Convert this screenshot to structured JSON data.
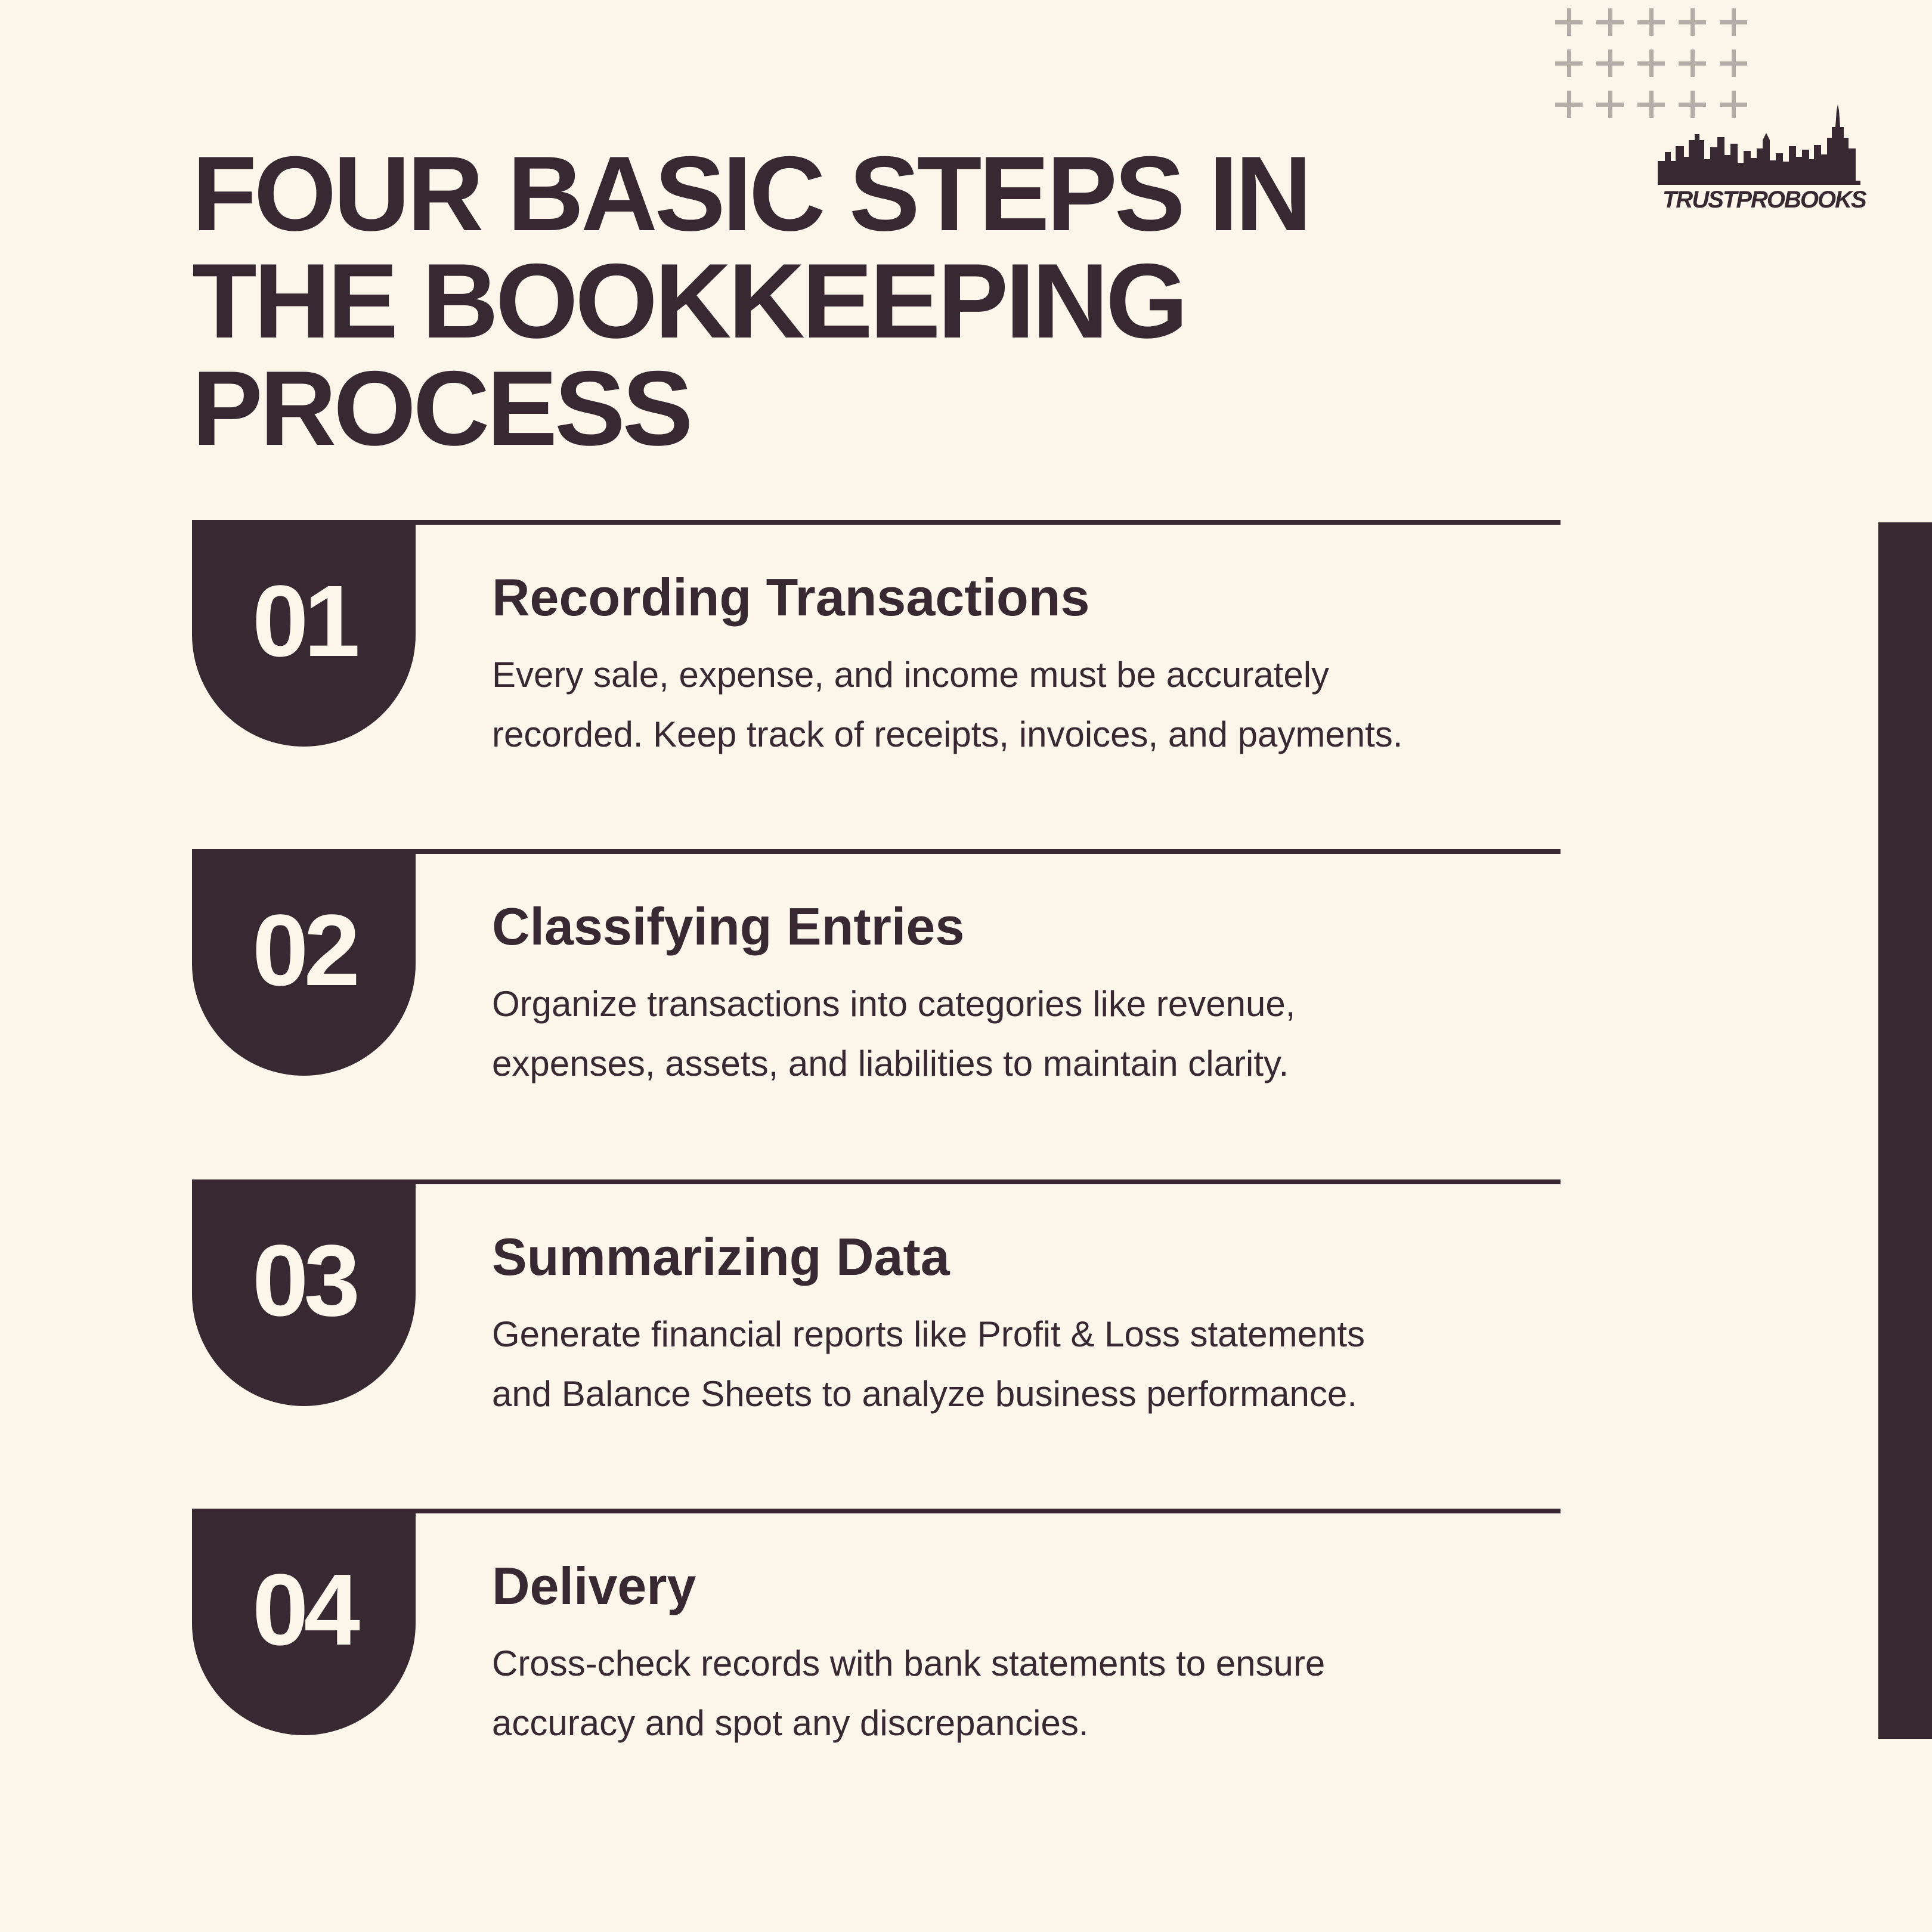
{
  "title": {
    "lines": [
      "FOUR BASIC STEPS IN",
      "THE BOOKKEEPING",
      "PROCESS"
    ]
  },
  "logo": {
    "brand": "TRUSTPROBOOKS",
    "icon": "city-skyline-icon"
  },
  "decoration": {
    "grid_icon": "plus-grid-icon",
    "rows": 3,
    "cols": 5
  },
  "colors": {
    "background": "#fcf5ea",
    "primary": "#372831",
    "accent_light": "#b4aca6"
  },
  "steps": [
    {
      "number": "01",
      "heading": "Recording Transactions",
      "desc_lines": [
        "Every sale, expense, and income must be accurately",
        "recorded. Keep track of receipts, invoices, and payments."
      ]
    },
    {
      "number": "02",
      "heading": "Classifying Entries",
      "desc_lines": [
        "Organize transactions into categories like revenue,",
        "expenses, assets, and liabilities to maintain clarity."
      ]
    },
    {
      "number": "03",
      "heading": "Summarizing Data",
      "desc_lines": [
        "Generate financial reports like Profit & Loss statements",
        "and Balance Sheets to analyze business performance."
      ]
    },
    {
      "number": "04",
      "heading": "Delivery",
      "desc_lines": [
        "Cross-check records with bank statements to ensure",
        "accuracy and spot any discrepancies."
      ]
    }
  ]
}
